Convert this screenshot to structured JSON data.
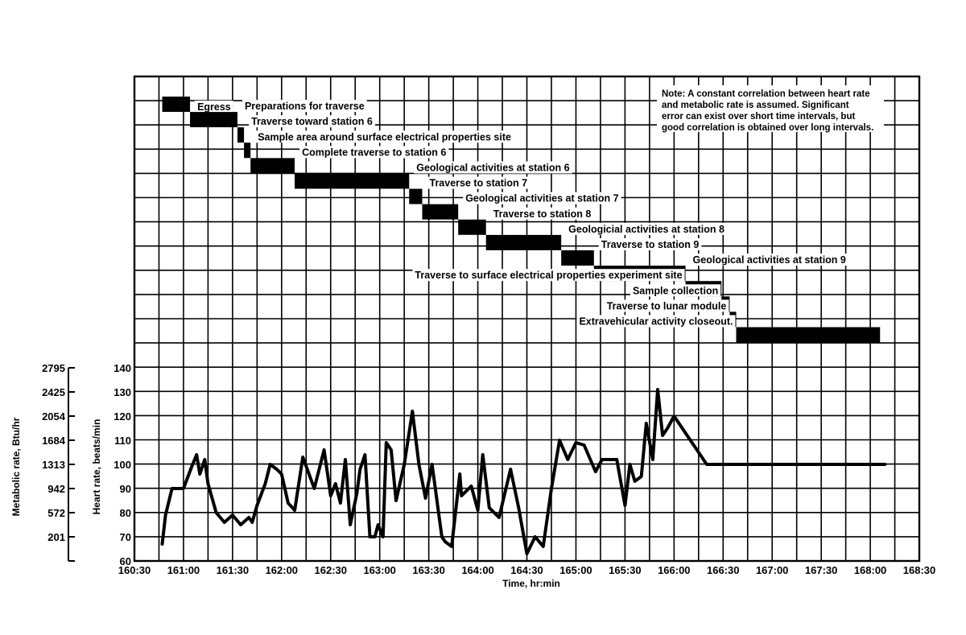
{
  "chart_data": {
    "type": "line",
    "title": "",
    "note": [
      "Note:  A constant correlation between heart rate",
      "and metabolic rate is assumed.  Significant",
      "error can exist over short time intervals, but",
      "good correlation is obtained over long intervals."
    ],
    "xlabel": "Time, hr:min",
    "ylabel": "Heart rate, beats/min",
    "ylabel_secondary": "Metabolic rate, Btu/hr",
    "xlim_minutes": [
      9630,
      10110
    ],
    "x_ticks": [
      {
        "label": "160:30",
        "min": 9630
      },
      {
        "label": "161:00",
        "min": 9660
      },
      {
        "label": "161:30",
        "min": 9690
      },
      {
        "label": "162:00",
        "min": 9720
      },
      {
        "label": "162:30",
        "min": 9750
      },
      {
        "label": "163:00",
        "min": 9780
      },
      {
        "label": "163:30",
        "min": 9810
      },
      {
        "label": "164:00",
        "min": 9840
      },
      {
        "label": "164:30",
        "min": 9870
      },
      {
        "label": "165:00",
        "min": 9900
      },
      {
        "label": "165:30",
        "min": 9930
      },
      {
        "label": "166:00",
        "min": 9960
      },
      {
        "label": "166:30",
        "min": 9990
      },
      {
        "label": "167:00",
        "min": 10020
      },
      {
        "label": "167:30",
        "min": 10050
      },
      {
        "label": "168:00",
        "min": 10080
      },
      {
        "label": "168:30",
        "min": 10110
      }
    ],
    "ylim": [
      60,
      140
    ],
    "y_ticks": [
      "60",
      "70",
      "80",
      "90",
      "100",
      "110",
      "120",
      "130",
      "140"
    ],
    "y_ticks_values": [
      60,
      70,
      80,
      90,
      100,
      110,
      120,
      130,
      140
    ],
    "y2_ticks": [
      "201",
      "572",
      "942",
      "1313",
      "1684",
      "2054",
      "2425",
      "2795"
    ],
    "y2_ticks_hr": [
      70,
      80,
      90,
      100,
      110,
      120,
      130,
      140
    ],
    "series": [
      {
        "x": [
          9647,
          9649,
          9653,
          9656,
          9660,
          9665,
          9668,
          9670,
          9673,
          9675,
          9680,
          9685,
          9690,
          9695,
          9700,
          9702,
          9705,
          9710,
          9713,
          9717,
          9720,
          9724,
          9728,
          9733,
          9740,
          9746,
          9750,
          9753,
          9756,
          9759,
          9762,
          9766,
          9768,
          9771,
          9774,
          9777,
          9779,
          9782,
          9784,
          9787,
          9790,
          9795,
          9800,
          9804,
          9808,
          9812,
          9814,
          9816,
          9818,
          9820,
          9824,
          9829,
          9830,
          9836,
          9840,
          9843,
          9847,
          9853,
          9860,
          9865,
          9870,
          9875,
          9880,
          9885,
          9890,
          9895,
          9900,
          9905,
          9912,
          9916,
          9920,
          9925,
          9930,
          9933,
          9936,
          9940,
          9943,
          9947,
          9950,
          9953,
          9956,
          9960,
          9965,
          9970,
          9975,
          9980,
          9985,
          9990,
          9994,
          9996,
          10000,
          10005,
          10009,
          10013,
          10017,
          10020,
          10023,
          10026,
          10029,
          10032,
          10037,
          10042,
          10046,
          10050,
          10054,
          10058,
          10060,
          10064,
          10068,
          10070,
          10074,
          10078,
          10081,
          10085,
          10089
        ],
        "y": [
          67,
          79,
          90,
          90,
          90,
          99,
          104,
          96,
          102,
          92,
          80,
          76,
          79,
          75,
          78,
          76,
          83,
          92,
          100,
          98,
          96,
          84,
          81,
          103,
          90,
          106,
          87,
          92,
          84,
          102,
          75,
          88,
          98,
          104,
          70,
          70,
          75,
          70,
          109,
          106,
          85,
          100,
          122,
          100,
          86,
          100,
          90,
          80,
          70,
          68,
          66,
          96,
          87,
          91,
          81,
          104,
          82,
          78,
          98,
          82,
          63,
          70,
          66,
          90,
          110,
          102,
          109,
          108,
          97,
          102,
          102,
          102,
          83,
          100,
          93,
          95,
          117,
          102,
          131,
          112,
          115,
          120,
          115,
          110,
          105,
          100,
          100,
          100,
          100,
          100,
          100,
          100,
          100,
          100,
          100,
          100,
          100,
          100,
          100,
          100,
          100,
          100,
          100,
          100,
          100,
          100,
          100,
          100,
          100,
          100,
          100,
          100,
          100,
          100,
          100
        ]
      }
    ],
    "activities": [
      {
        "label": "Egress",
        "start": 9647,
        "end": 9664
      },
      {
        "label": "Preparations for traverse",
        "start": 9664,
        "end": 9693
      },
      {
        "label": "Traverse toward station 6",
        "start": 9693,
        "end": 9697
      },
      {
        "label": "Sample area around surface electrical properties site",
        "start": 9697,
        "end": 9701
      },
      {
        "label": "Complete traverse to station 6",
        "start": 9701,
        "end": 9728
      },
      {
        "label": "Geological activities at station 6",
        "start": 9728,
        "end": 9798
      },
      {
        "label": "Traverse to station 7",
        "start": 9798,
        "end": 9806
      },
      {
        "label": "Geological activities at station 7",
        "start": 9806,
        "end": 9828
      },
      {
        "label": "Traverse to station 8",
        "start": 9828,
        "end": 9845
      },
      {
        "label": "Geologicial activities at station 8",
        "start": 9845,
        "end": 9891
      },
      {
        "label": "Traverse to station 9",
        "start": 9891,
        "end": 9911
      },
      {
        "label": "Geological activities at station 9",
        "start": 9911,
        "end": 9967
      },
      {
        "label": "Traverse to surface electrical properties experiment site",
        "start": 9967,
        "end": 9989
      },
      {
        "label": "Sample collection",
        "start": 9989,
        "end": 9994
      },
      {
        "label": "Traverse to lunar module",
        "start": 9994,
        "end": 9998
      },
      {
        "label": "Extravehicular activity closeout.",
        "start": 9998,
        "end": 10086
      }
    ]
  }
}
